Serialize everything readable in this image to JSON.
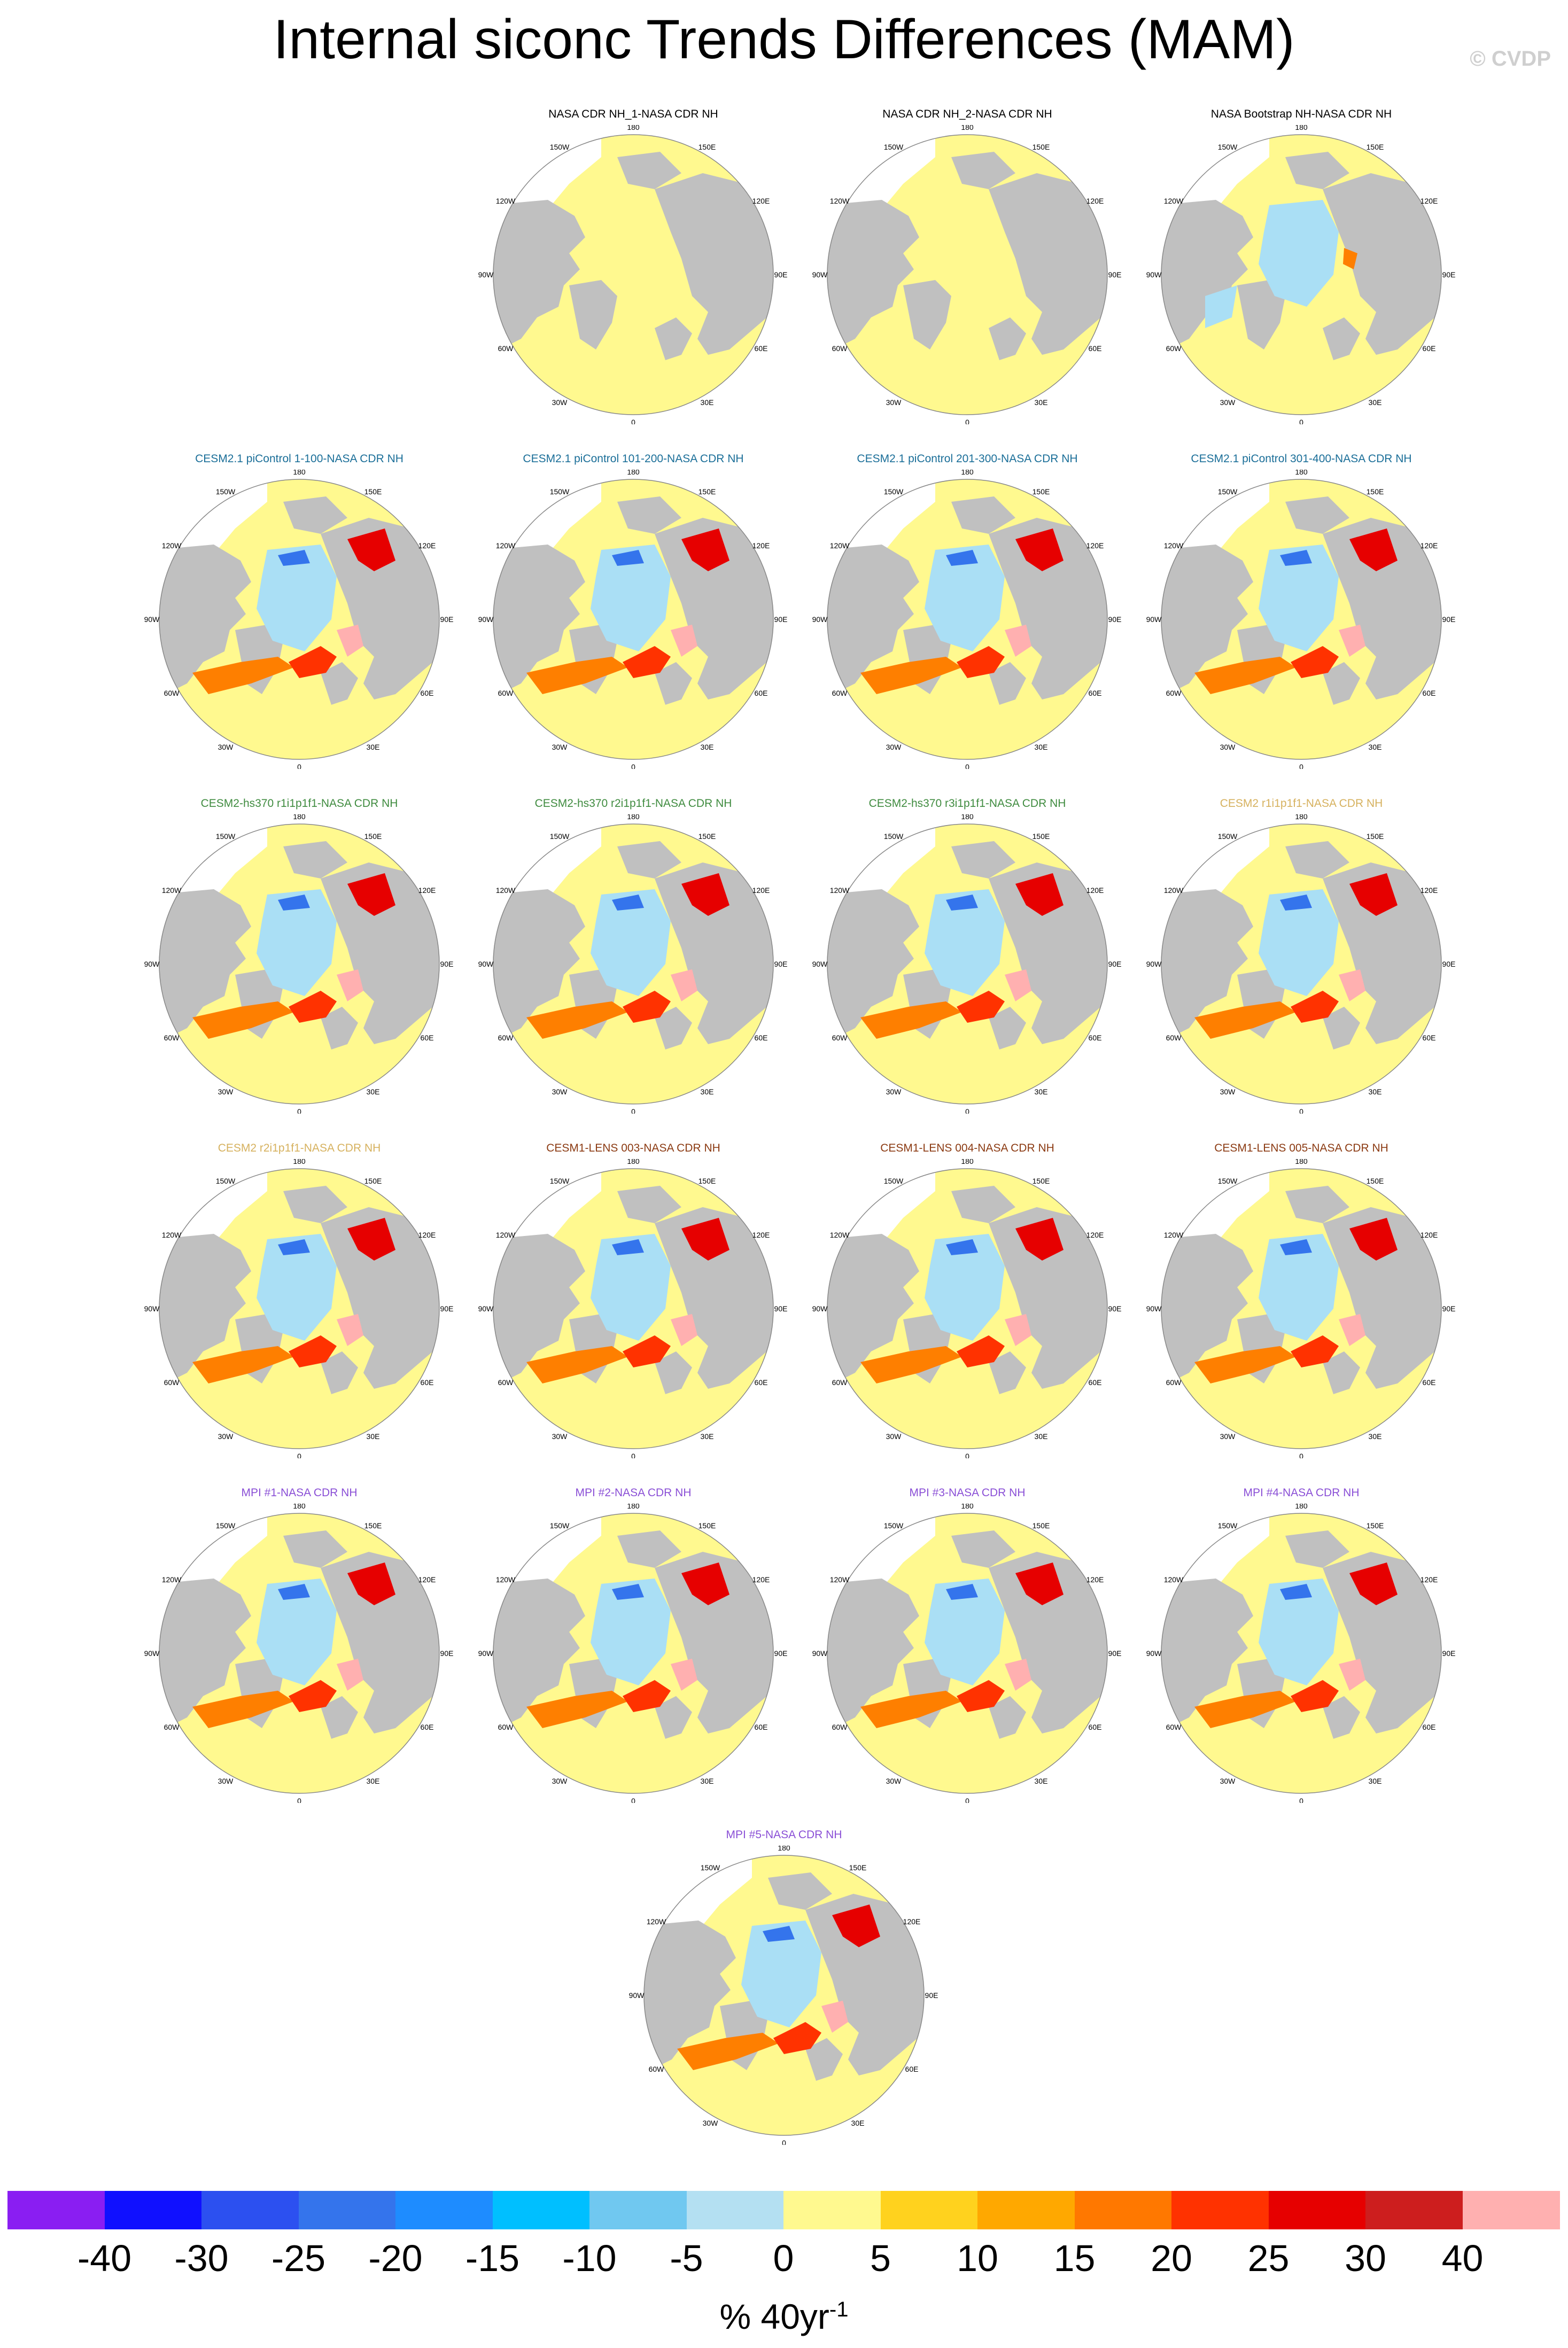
{
  "title": "Internal siconc Trends Differences (MAM)",
  "credit": "© CVDP",
  "map_labels": {
    "top": "180",
    "bottom": "0",
    "right": "90E",
    "left": "90W",
    "ne1": "150E",
    "ne2": "120E",
    "se1": "60E",
    "se2": "30E",
    "nw1": "150W",
    "nw2": "120W",
    "sw1": "60W",
    "sw2": "30W"
  },
  "colors": {
    "land": "#c0c0c0",
    "ocean_zero": "#fff98f",
    "ice_neg": "#aadff5",
    "ice_pos": "#fe7f00",
    "coast": "#4d4d4d"
  },
  "panels": [
    {
      "title": "NASA CDR NH_1-NASA CDR NH",
      "title_color": "#000000",
      "style": "obs"
    },
    {
      "title": "NASA CDR NH_2-NASA CDR NH",
      "title_color": "#000000",
      "style": "obs"
    },
    {
      "title": "NASA Bootstrap NH-NASA CDR NH",
      "title_color": "#000000",
      "style": "boot"
    },
    {
      "title": "CESM2.1 piControl 1-100-NASA CDR NH",
      "title_color": "#1a6e98",
      "style": "model"
    },
    {
      "title": "CESM2.1 piControl 101-200-NASA CDR NH",
      "title_color": "#1a6e98",
      "style": "model"
    },
    {
      "title": "CESM2.1 piControl 201-300-NASA CDR NH",
      "title_color": "#1a6e98",
      "style": "model"
    },
    {
      "title": "CESM2.1 piControl 301-400-NASA CDR NH",
      "title_color": "#1a6e98",
      "style": "model"
    },
    {
      "title": "CESM2-hs370 r1i1p1f1-NASA CDR NH",
      "title_color": "#3f8b3f",
      "style": "model"
    },
    {
      "title": "CESM2-hs370 r2i1p1f1-NASA CDR NH",
      "title_color": "#3f8b3f",
      "style": "model"
    },
    {
      "title": "CESM2-hs370 r3i1p1f1-NASA CDR NH",
      "title_color": "#3f8b3f",
      "style": "model"
    },
    {
      "title": "CESM2 r1i1p1f1-NASA CDR NH",
      "title_color": "#d6b15e",
      "style": "model"
    },
    {
      "title": "CESM2 r2i1p1f1-NASA CDR NH",
      "title_color": "#d6b15e",
      "style": "model"
    },
    {
      "title": "CESM1-LENS 003-NASA CDR NH",
      "title_color": "#8b3a12",
      "style": "model"
    },
    {
      "title": "CESM1-LENS 004-NASA CDR NH",
      "title_color": "#8b3a12",
      "style": "model"
    },
    {
      "title": "CESM1-LENS 005-NASA CDR NH",
      "title_color": "#8b3a12",
      "style": "model"
    },
    {
      "title": "MPI #1-NASA CDR NH",
      "title_color": "#8a4fd6",
      "style": "model"
    },
    {
      "title": "MPI #2-NASA CDR NH",
      "title_color": "#8a4fd6",
      "style": "model"
    },
    {
      "title": "MPI #3-NASA CDR NH",
      "title_color": "#8a4fd6",
      "style": "model"
    },
    {
      "title": "MPI #4-NASA CDR NH",
      "title_color": "#8a4fd6",
      "style": "model"
    },
    {
      "title": "MPI #5-NASA CDR NH",
      "title_color": "#8a4fd6",
      "style": "model"
    }
  ],
  "colorbar": {
    "colors": [
      "#8a1ef2",
      "#1010ff",
      "#2c50f0",
      "#3474ec",
      "#1e8cff",
      "#00bfff",
      "#70c8f0",
      "#b4e0f2",
      "#fff98f",
      "#ffd21e",
      "#ffa800",
      "#ff7800",
      "#ff3200",
      "#e60000",
      "#cd1e1e",
      "#ffb0b0"
    ],
    "ticks": [
      "-40",
      "-30",
      "-25",
      "-20",
      "-15",
      "-10",
      "-5",
      "0",
      "5",
      "10",
      "15",
      "20",
      "25",
      "30",
      "40"
    ],
    "units_main": "% 40yr",
    "units_sup": "-1"
  }
}
